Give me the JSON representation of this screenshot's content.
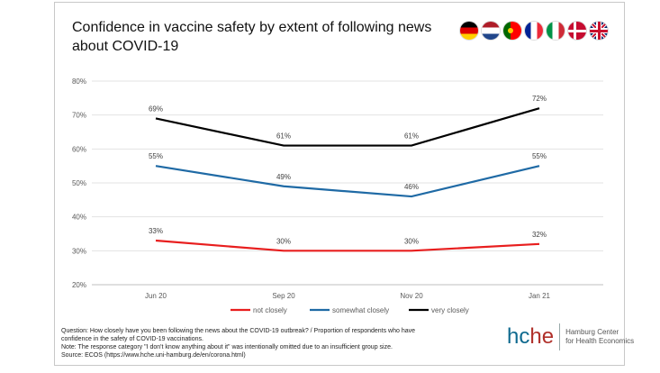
{
  "title": "Confidence in vaccine safety by extent of following news about COVID-19",
  "flags": [
    {
      "name": "germany-flag-icon",
      "colors": [
        "#000000",
        "#dd0000",
        "#ffce00"
      ],
      "orient": "h"
    },
    {
      "name": "netherlands-flag-icon",
      "colors": [
        "#ae1c28",
        "#ffffff",
        "#21468b"
      ],
      "orient": "h"
    },
    {
      "name": "portugal-flag-icon",
      "colors": [
        "#006600",
        "#ff0000"
      ],
      "orient": "pt"
    },
    {
      "name": "france-flag-icon",
      "colors": [
        "#002395",
        "#ffffff",
        "#ed2939"
      ],
      "orient": "v"
    },
    {
      "name": "italy-flag-icon",
      "colors": [
        "#009246",
        "#ffffff",
        "#ce2b37"
      ],
      "orient": "v"
    },
    {
      "name": "denmark-flag-icon",
      "colors": [
        "#c60c30",
        "#ffffff"
      ],
      "orient": "dk"
    },
    {
      "name": "uk-flag-icon",
      "colors": [
        "#012169",
        "#ffffff",
        "#c8102e"
      ],
      "orient": "uk"
    }
  ],
  "chart_data": {
    "type": "line",
    "categories": [
      "Jun 20",
      "Sep 20",
      "Nov 20",
      "Jan 21"
    ],
    "yticks": [
      "20%",
      "30%",
      "40%",
      "50%",
      "60%",
      "70%",
      "80%"
    ],
    "ylim": [
      20,
      80
    ],
    "grid": true,
    "legend_position": "bottom",
    "series": [
      {
        "name": "not closely",
        "color": "#e81e1e",
        "values": [
          33,
          30,
          30,
          32
        ],
        "labels": [
          "33%",
          "30%",
          "30%",
          "32%"
        ]
      },
      {
        "name": "somewhat closely",
        "color": "#1f6aa5",
        "values": [
          55,
          49,
          46,
          55
        ],
        "labels": [
          "55%",
          "49%",
          "46%",
          "55%"
        ]
      },
      {
        "name": "very closely",
        "color": "#000000",
        "values": [
          69,
          61,
          61,
          72
        ],
        "labels": [
          "69%",
          "61%",
          "61%",
          "72%"
        ]
      }
    ]
  },
  "notes": {
    "line1": "Question: How closely have you been following the news about the COVID-19 outbreak? / Proportion of respondents who have confidence in the safety of COVID-19 vaccinations.",
    "line2": "Note: The response category \"I don't know anything about it\" was intentionally omitted due to an insufficient group size.",
    "line3": "Source: ECOS (https://www.hche.uni-hamburg.de/en/corona.html)"
  },
  "logo": {
    "mark_hc": "hc",
    "mark_he": "he",
    "line1": "Hamburg Center",
    "line2": "for Health Economics"
  }
}
